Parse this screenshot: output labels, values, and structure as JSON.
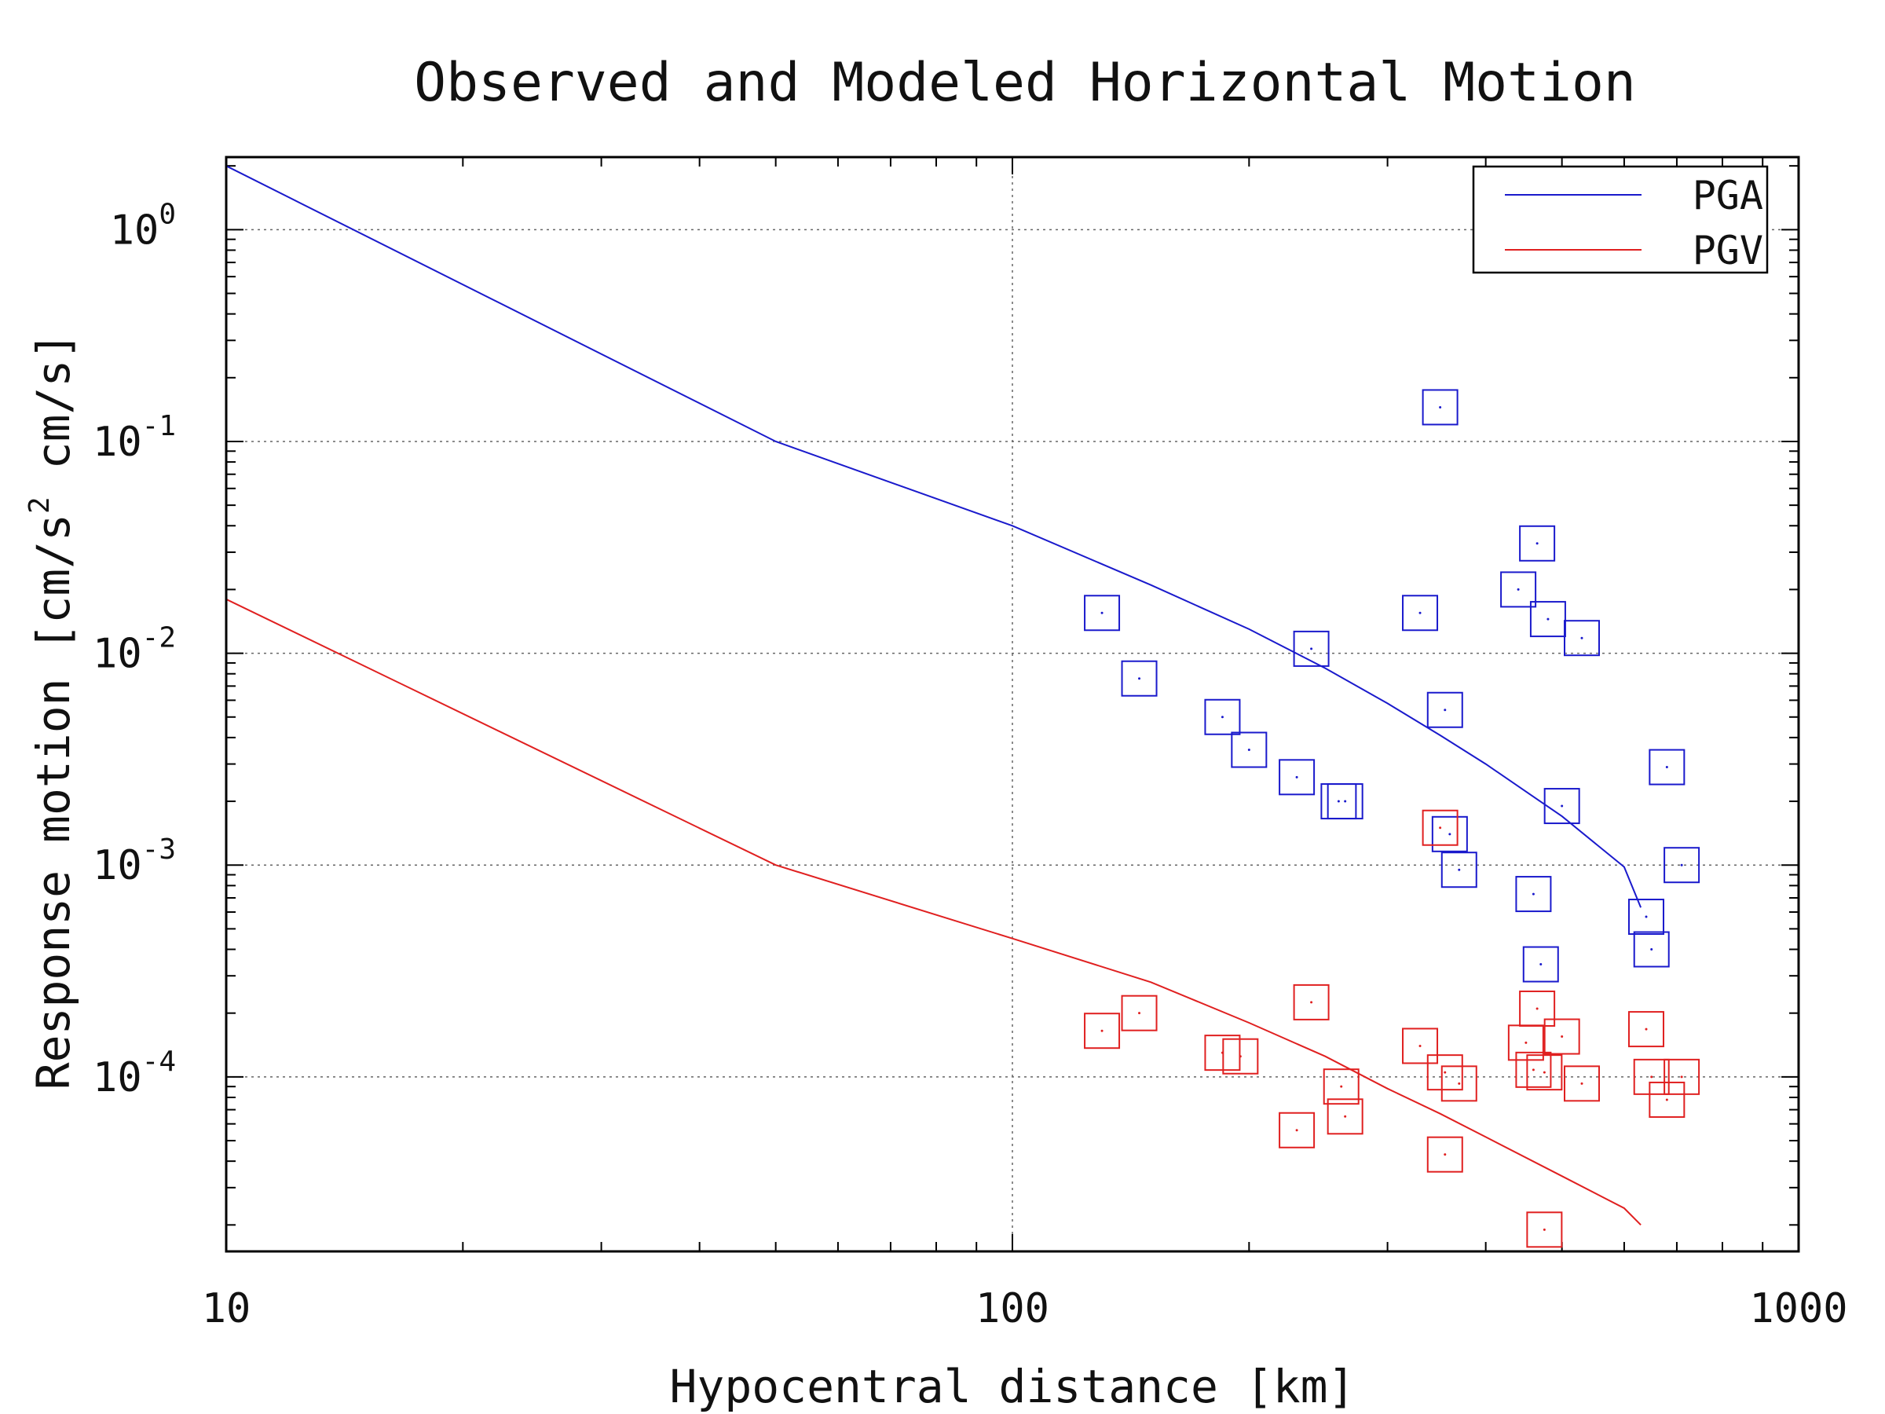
{
  "chart_data": {
    "type": "scatter",
    "title": "Observed and Modeled Horizontal Motion",
    "xlabel": "Hypocentral distance [km]",
    "ylabel": {
      "before": "Response motion [cm/s",
      "sup": "2",
      "after": " cm/s]"
    },
    "x_scale": "log",
    "y_scale": "log",
    "xlim": [
      10,
      1000
    ],
    "ylim": [
      1.5e-05,
      2.2
    ],
    "x_ticks": [
      {
        "value": 10,
        "label": "10"
      },
      {
        "value": 100,
        "label": "100"
      },
      {
        "value": 1000,
        "label": "1000"
      }
    ],
    "y_ticks": [
      {
        "value": 1,
        "base": "10",
        "exp": "0"
      },
      {
        "value": 0.1,
        "base": "10",
        "exp": "-1"
      },
      {
        "value": 0.01,
        "base": "10",
        "exp": "-2"
      },
      {
        "value": 0.001,
        "base": "10",
        "exp": "-3"
      },
      {
        "value": 0.0001,
        "base": "10",
        "exp": "-4"
      }
    ],
    "grid": true,
    "legend_position": "top-right",
    "series": [
      {
        "name": "PGA",
        "color": "#1a1acc",
        "model_curve": [
          [
            10,
            2.0
          ],
          [
            50,
            0.1
          ],
          [
            100,
            0.04
          ],
          [
            150,
            0.021
          ],
          [
            200,
            0.013
          ],
          [
            250,
            0.0085
          ],
          [
            300,
            0.0058
          ],
          [
            350,
            0.0041
          ],
          [
            400,
            0.003
          ],
          [
            500,
            0.0017
          ],
          [
            600,
            0.00098
          ],
          [
            630,
            0.00063
          ]
        ],
        "observed": [
          [
            130,
            0.0155
          ],
          [
            145,
            0.0076
          ],
          [
            185,
            0.005
          ],
          [
            200,
            0.0035
          ],
          [
            230,
            0.0026
          ],
          [
            240,
            0.0105
          ],
          [
            260,
            0.002
          ],
          [
            265,
            0.002
          ],
          [
            330,
            0.0155
          ],
          [
            350,
            0.145
          ],
          [
            355,
            0.0054
          ],
          [
            360,
            0.0014
          ],
          [
            370,
            0.00095
          ],
          [
            440,
            0.02
          ],
          [
            460,
            0.00073
          ],
          [
            465,
            0.033
          ],
          [
            470,
            0.00034
          ],
          [
            480,
            0.0145
          ],
          [
            500,
            0.0019
          ],
          [
            530,
            0.0118
          ],
          [
            640,
            0.00057
          ],
          [
            650,
            0.0004
          ],
          [
            680,
            0.0029
          ],
          [
            710,
            0.001
          ]
        ]
      },
      {
        "name": "PGV",
        "color": "#e02020",
        "model_curve": [
          [
            10,
            0.018
          ],
          [
            50,
            0.001
          ],
          [
            100,
            0.00045
          ],
          [
            150,
            0.00028
          ],
          [
            200,
            0.00018
          ],
          [
            250,
            0.000125
          ],
          [
            300,
            8.8e-05
          ],
          [
            350,
            6.7e-05
          ],
          [
            400,
            5.2e-05
          ],
          [
            500,
            3.4e-05
          ],
          [
            600,
            2.4e-05
          ],
          [
            630,
            2e-05
          ]
        ],
        "observed": [
          [
            130,
            0.000165
          ],
          [
            145,
            0.0002
          ],
          [
            185,
            0.00013
          ],
          [
            195,
            0.000125
          ],
          [
            230,
            5.6e-05
          ],
          [
            240,
            0.000225
          ],
          [
            262,
            9e-05
          ],
          [
            265,
            6.5e-05
          ],
          [
            330,
            0.00014
          ],
          [
            350,
            0.0015
          ],
          [
            355,
            0.000105
          ],
          [
            355,
            4.3e-05
          ],
          [
            370,
            9.3e-05
          ],
          [
            450,
            0.000145
          ],
          [
            460,
            0.000108
          ],
          [
            465,
            0.00021
          ],
          [
            475,
            0.000105
          ],
          [
            475,
            1.9e-05
          ],
          [
            500,
            0.000155
          ],
          [
            530,
            9.3e-05
          ],
          [
            640,
            0.000168
          ],
          [
            650,
            0.0001
          ],
          [
            680,
            7.8e-05
          ],
          [
            710,
            0.0001
          ]
        ]
      }
    ]
  }
}
